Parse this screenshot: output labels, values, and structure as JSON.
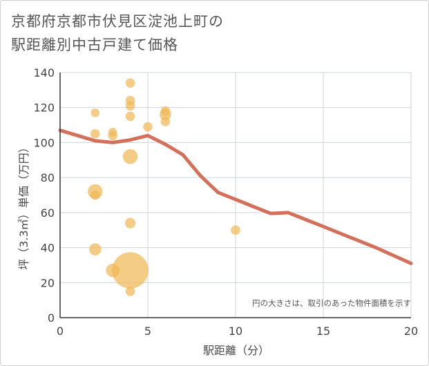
{
  "chart_data": {
    "type": "scatter",
    "title_line1": "京都府京都市伏見区淀池上町の",
    "title_line2": "駅距離別中古戸建て価格",
    "xlabel": "駅距離（分）",
    "ylabel": "坪（3.3㎡）単価（万円）",
    "xlim": [
      0,
      20
    ],
    "ylim": [
      0,
      140
    ],
    "xticks": [
      0,
      5,
      10,
      15,
      20
    ],
    "yticks": [
      0,
      20,
      40,
      60,
      80,
      100,
      120,
      140
    ],
    "note": "円の大きさは、取引のあった物件面積を示す",
    "colors": {
      "bubble": "#f0b857",
      "line": "#d4705a",
      "grid": "#ccd3dc",
      "axis": "#333333"
    },
    "scatter": [
      {
        "x": 2,
        "y": 117,
        "size": 1
      },
      {
        "x": 2,
        "y": 105,
        "size": 1.2
      },
      {
        "x": 2,
        "y": 72,
        "size": 3
      },
      {
        "x": 2,
        "y": 70,
        "size": 1.2
      },
      {
        "x": 2,
        "y": 39,
        "size": 2
      },
      {
        "x": 3,
        "y": 106,
        "size": 1
      },
      {
        "x": 3,
        "y": 104,
        "size": 1.2
      },
      {
        "x": 3,
        "y": 27,
        "size": 2.5
      },
      {
        "x": 4,
        "y": 134,
        "size": 1.2
      },
      {
        "x": 4,
        "y": 124,
        "size": 1.2
      },
      {
        "x": 4,
        "y": 121,
        "size": 1.2
      },
      {
        "x": 4,
        "y": 115,
        "size": 1.2
      },
      {
        "x": 4,
        "y": 92,
        "size": 3
      },
      {
        "x": 4,
        "y": 54,
        "size": 1.5
      },
      {
        "x": 4,
        "y": 27,
        "size": 18
      },
      {
        "x": 4,
        "y": 15,
        "size": 1.2
      },
      {
        "x": 5,
        "y": 109,
        "size": 1.2
      },
      {
        "x": 6,
        "y": 118,
        "size": 1.2
      },
      {
        "x": 6,
        "y": 116,
        "size": 1.8
      },
      {
        "x": 6,
        "y": 112,
        "size": 1.2
      },
      {
        "x": 10,
        "y": 50,
        "size": 1.2
      }
    ],
    "trend_line": {
      "x": [
        0,
        1,
        2,
        3,
        4,
        5,
        6,
        7,
        8,
        9,
        10,
        11,
        12,
        13,
        14,
        15,
        16,
        17,
        18,
        19,
        20
      ],
      "y": [
        107,
        104,
        101,
        100,
        101.5,
        104,
        99,
        93,
        81,
        71.5,
        67.5,
        63.5,
        59.5,
        60,
        56,
        52,
        48,
        44,
        40,
        35.5,
        31
      ]
    }
  }
}
